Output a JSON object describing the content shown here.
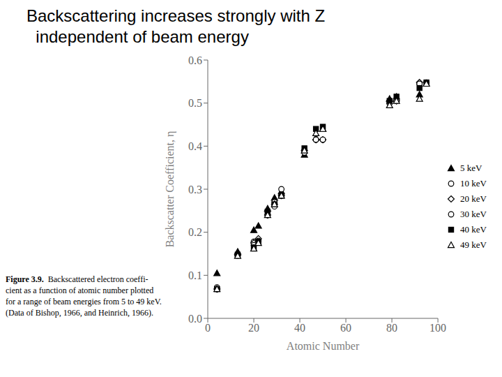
{
  "chart_data": {
    "type": "scatter",
    "title": "Backscattering increases strongly with Z",
    "subtitle": "  independent of beam energy",
    "xlabel": "Atomic Number",
    "ylabel": "Backscatter Coefficient, η",
    "annotations": [
      "Figure 3.9.",
      "  Backscattered electron coeffi-\ncient as a function of atomic number plotted\nfor a range of beam energies from 5 to 49 keV.\n(Data of Bishop, 1966, and Heinrich, 1966)."
    ],
    "xlim": [
      0,
      100
    ],
    "ylim": [
      0.0,
      0.6
    ],
    "xticks": [
      0,
      20,
      40,
      60,
      80,
      100
    ],
    "yticks": [
      {
        "value": 0.0,
        "label": "0.0"
      },
      0.1,
      0.2,
      0.3,
      0.4,
      0.5,
      0.6
    ],
    "grid": false,
    "legend": "right",
    "series": [
      {
        "name": "5 keV",
        "color": "#000000",
        "marker": "triangle-filled",
        "x": [
          4,
          13,
          20,
          22,
          26,
          29,
          32,
          42,
          47,
          50,
          79,
          82,
          92,
          95
        ],
        "values": [
          0.105,
          0.155,
          0.205,
          0.215,
          0.255,
          0.28,
          0.295,
          0.38,
          0.42,
          0.44,
          0.51,
          0.515,
          0.52,
          0.545
        ]
      },
      {
        "name": "10 keV",
        "color": "#000000",
        "marker": "circle-open",
        "x": [
          4,
          13,
          20,
          22,
          26,
          29,
          32,
          42,
          47,
          50,
          79,
          82,
          92,
          95
        ],
        "values": [
          0.072,
          0.148,
          0.178,
          0.183,
          0.248,
          0.27,
          0.3,
          0.39,
          0.415,
          0.415,
          0.5,
          0.505,
          0.545,
          0.548
        ]
      },
      {
        "name": "20 keV",
        "color": "#000000",
        "marker": "diamond-open",
        "x": [
          4,
          13,
          20,
          22,
          26,
          29,
          32,
          42,
          47,
          50,
          79,
          82,
          92
        ],
        "values": [
          0.068,
          0.147,
          0.175,
          0.185,
          0.24,
          0.265,
          0.285,
          0.39,
          0.415,
          0.415,
          0.505,
          0.505,
          0.548
        ]
      },
      {
        "name": "30 keV",
        "color": "#000000",
        "marker": "circle-open",
        "x": [
          4,
          13,
          20,
          22,
          26,
          29,
          32,
          42,
          47,
          50,
          79,
          82,
          92
        ],
        "values": [
          0.068,
          0.145,
          0.17,
          0.18,
          0.24,
          0.26,
          0.285,
          0.385,
          0.415,
          0.415,
          0.5,
          0.505,
          0.545
        ]
      },
      {
        "name": "40 keV",
        "color": "#000000",
        "marker": "square-filled",
        "x": [
          4,
          13,
          20,
          22,
          26,
          29,
          32,
          42,
          47,
          50,
          79,
          82,
          92,
          95
        ],
        "values": [
          0.068,
          0.148,
          0.165,
          0.178,
          0.248,
          0.265,
          0.285,
          0.395,
          0.44,
          0.445,
          0.505,
          0.515,
          0.535,
          0.548
        ]
      },
      {
        "name": "49 keV",
        "color": "#000000",
        "marker": "triangle-open",
        "x": [
          4,
          13,
          20,
          22,
          26,
          29,
          32,
          42,
          47,
          50,
          79,
          82,
          92,
          95
        ],
        "values": [
          0.068,
          0.145,
          0.162,
          0.175,
          0.24,
          0.265,
          0.285,
          0.39,
          0.43,
          0.44,
          0.495,
          0.505,
          0.51,
          0.545
        ]
      }
    ]
  }
}
